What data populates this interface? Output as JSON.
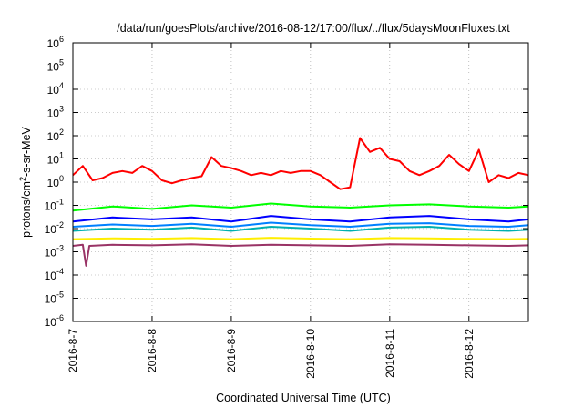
{
  "chart_data": {
    "type": "line",
    "title": "/data/run/goesPlots/archive/2016-08-12/17:00/flux/../flux/5daysMoonFluxes.txt",
    "xlabel": "Coordinated Universal Time (UTC)",
    "ylabel": "protons/cm²-s-sr-MeV",
    "ylabel_parts": {
      "pre": "protons/cm",
      "sup": "2",
      "post": "-s-sr-MeV"
    },
    "y_scale": "log",
    "ylim": [
      1e-06,
      1000000.0
    ],
    "y_ticks": [
      {
        "value": 1e-06,
        "base": "10",
        "exp": "-6"
      },
      {
        "value": 1e-05,
        "base": "10",
        "exp": "-5"
      },
      {
        "value": 0.0001,
        "base": "10",
        "exp": "-4"
      },
      {
        "value": 0.001,
        "base": "10",
        "exp": "-3"
      },
      {
        "value": 0.01,
        "base": "10",
        "exp": "-2"
      },
      {
        "value": 0.1,
        "base": "10",
        "exp": "-1"
      },
      {
        "value": 1,
        "base": "10",
        "exp": "0"
      },
      {
        "value": 10,
        "base": "10",
        "exp": "1"
      },
      {
        "value": 100,
        "base": "10",
        "exp": "2"
      },
      {
        "value": 1000,
        "base": "10",
        "exp": "3"
      },
      {
        "value": 10000,
        "base": "10",
        "exp": "4"
      },
      {
        "value": 100000,
        "base": "10",
        "exp": "5"
      },
      {
        "value": 1000000,
        "base": "10",
        "exp": "6"
      }
    ],
    "x_type": "date",
    "xlim": [
      "2016-08-07T00:00",
      "2016-08-12T18:00"
    ],
    "x_ticks": [
      {
        "date": "2016-08-07",
        "label": "2016-8-7"
      },
      {
        "date": "2016-08-08",
        "label": "2016-8-8"
      },
      {
        "date": "2016-08-09",
        "label": "2016-8-9"
      },
      {
        "date": "2016-08-10",
        "label": "2016-8-10"
      },
      {
        "date": "2016-08-11",
        "label": "2016-8-11"
      },
      {
        "date": "2016-08-12",
        "label": "2016-8-12"
      }
    ],
    "grid": true,
    "legend": "none",
    "series": [
      {
        "color": "#ff0000",
        "x": [
          "2016-08-07T00:00",
          "2016-08-07T03:00",
          "2016-08-07T06:00",
          "2016-08-07T09:00",
          "2016-08-07T12:00",
          "2016-08-07T15:00",
          "2016-08-07T18:00",
          "2016-08-07T21:00",
          "2016-08-08T00:00",
          "2016-08-08T03:00",
          "2016-08-08T06:00",
          "2016-08-08T09:00",
          "2016-08-08T12:00",
          "2016-08-08T15:00",
          "2016-08-08T18:00",
          "2016-08-08T21:00",
          "2016-08-09T00:00",
          "2016-08-09T03:00",
          "2016-08-09T06:00",
          "2016-08-09T09:00",
          "2016-08-09T12:00",
          "2016-08-09T15:00",
          "2016-08-09T18:00",
          "2016-08-09T21:00",
          "2016-08-10T00:00",
          "2016-08-10T03:00",
          "2016-08-10T06:00",
          "2016-08-10T09:00",
          "2016-08-10T12:00",
          "2016-08-10T15:00",
          "2016-08-10T18:00",
          "2016-08-10T21:00",
          "2016-08-11T00:00",
          "2016-08-11T03:00",
          "2016-08-11T06:00",
          "2016-08-11T09:00",
          "2016-08-11T12:00",
          "2016-08-11T15:00",
          "2016-08-11T18:00",
          "2016-08-11T21:00",
          "2016-08-12T00:00",
          "2016-08-12T03:00",
          "2016-08-12T06:00",
          "2016-08-12T09:00",
          "2016-08-12T12:00",
          "2016-08-12T15:00",
          "2016-08-12T18:00"
        ],
        "values": [
          2,
          5,
          1.2,
          1.5,
          2.5,
          3,
          2.5,
          5,
          3,
          1.2,
          0.9,
          1.2,
          1.5,
          1.8,
          12,
          5,
          4,
          3,
          2,
          2.5,
          2,
          3,
          2.5,
          3,
          3,
          2,
          1,
          0.5,
          0.6,
          80,
          20,
          30,
          10,
          8,
          3,
          2,
          3,
          5,
          15,
          6,
          3,
          25,
          1,
          2,
          1.5,
          2.5,
          2
        ]
      },
      {
        "color": "#00ff00",
        "x": [
          "2016-08-07T00:00",
          "2016-08-07T12:00",
          "2016-08-08T00:00",
          "2016-08-08T12:00",
          "2016-08-09T00:00",
          "2016-08-09T12:00",
          "2016-08-10T00:00",
          "2016-08-10T12:00",
          "2016-08-11T00:00",
          "2016-08-11T12:00",
          "2016-08-12T00:00",
          "2016-08-12T12:00",
          "2016-08-12T18:00"
        ],
        "values": [
          0.06,
          0.09,
          0.07,
          0.1,
          0.08,
          0.12,
          0.09,
          0.08,
          0.1,
          0.11,
          0.09,
          0.08,
          0.09
        ]
      },
      {
        "color": "#0000ff",
        "x": [
          "2016-08-07T00:00",
          "2016-08-07T12:00",
          "2016-08-08T00:00",
          "2016-08-08T12:00",
          "2016-08-09T00:00",
          "2016-08-09T12:00",
          "2016-08-10T00:00",
          "2016-08-10T12:00",
          "2016-08-11T00:00",
          "2016-08-11T12:00",
          "2016-08-12T00:00",
          "2016-08-12T12:00",
          "2016-08-12T18:00"
        ],
        "values": [
          0.02,
          0.03,
          0.025,
          0.03,
          0.02,
          0.035,
          0.025,
          0.02,
          0.03,
          0.035,
          0.025,
          0.02,
          0.025
        ]
      },
      {
        "color": "#0080ff",
        "x": [
          "2016-08-07T00:00",
          "2016-08-07T12:00",
          "2016-08-08T00:00",
          "2016-08-08T12:00",
          "2016-08-09T00:00",
          "2016-08-09T12:00",
          "2016-08-10T00:00",
          "2016-08-10T12:00",
          "2016-08-11T00:00",
          "2016-08-11T12:00",
          "2016-08-12T00:00",
          "2016-08-12T12:00",
          "2016-08-12T18:00"
        ],
        "values": [
          0.012,
          0.015,
          0.013,
          0.016,
          0.012,
          0.018,
          0.014,
          0.012,
          0.016,
          0.017,
          0.013,
          0.012,
          0.014
        ]
      },
      {
        "color": "#00b0b0",
        "x": [
          "2016-08-07T00:00",
          "2016-08-07T12:00",
          "2016-08-08T00:00",
          "2016-08-08T12:00",
          "2016-08-09T00:00",
          "2016-08-09T12:00",
          "2016-08-10T00:00",
          "2016-08-10T12:00",
          "2016-08-11T00:00",
          "2016-08-11T12:00",
          "2016-08-12T00:00",
          "2016-08-12T12:00",
          "2016-08-12T18:00"
        ],
        "values": [
          0.008,
          0.01,
          0.009,
          0.011,
          0.008,
          0.012,
          0.01,
          0.008,
          0.011,
          0.012,
          0.009,
          0.008,
          0.009
        ]
      },
      {
        "color": "#ffee00",
        "x": [
          "2016-08-07T00:00",
          "2016-08-07T12:00",
          "2016-08-08T00:00",
          "2016-08-08T12:00",
          "2016-08-09T00:00",
          "2016-08-09T12:00",
          "2016-08-10T00:00",
          "2016-08-10T12:00",
          "2016-08-11T00:00",
          "2016-08-11T12:00",
          "2016-08-12T00:00",
          "2016-08-12T12:00",
          "2016-08-12T18:00"
        ],
        "values": [
          0.0035,
          0.0038,
          0.0036,
          0.0039,
          0.0035,
          0.004,
          0.0037,
          0.0035,
          0.0039,
          0.0038,
          0.0036,
          0.0035,
          0.0036
        ]
      },
      {
        "color": "#993366",
        "x": [
          "2016-08-07T00:00",
          "2016-08-07T03:00",
          "2016-08-07T04:00",
          "2016-08-07T05:00",
          "2016-08-07T12:00",
          "2016-08-08T00:00",
          "2016-08-08T12:00",
          "2016-08-09T00:00",
          "2016-08-09T12:00",
          "2016-08-10T00:00",
          "2016-08-10T12:00",
          "2016-08-11T00:00",
          "2016-08-11T12:00",
          "2016-08-12T00:00",
          "2016-08-12T12:00",
          "2016-08-12T18:00"
        ],
        "values": [
          0.0018,
          0.002,
          0.00025,
          0.0018,
          0.002,
          0.0019,
          0.0021,
          0.0018,
          0.002,
          0.0019,
          0.0018,
          0.0021,
          0.002,
          0.0019,
          0.0018,
          0.0019
        ]
      }
    ]
  }
}
